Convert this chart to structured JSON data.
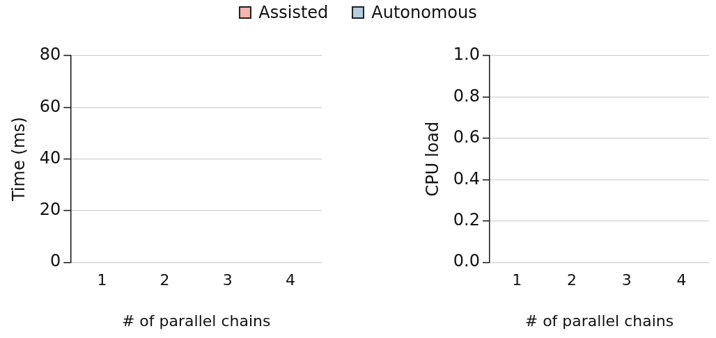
{
  "chart_data": [
    {
      "type": "bar",
      "categories": [
        "1",
        "2",
        "3",
        "4"
      ],
      "xlabel": "# of parallel chains",
      "ylabel": "Time (ms)",
      "ylim": [
        0,
        80
      ],
      "yticks": [
        0,
        20,
        40,
        60,
        80
      ],
      "grid": "y",
      "legend": "top",
      "series": [
        {
          "name": "Assisted",
          "color": "#f4b6b0",
          "values": [
            null,
            null,
            null,
            null
          ]
        },
        {
          "name": "Autonomous",
          "color": "#b3cde0",
          "values": [
            null,
            null,
            null,
            null
          ]
        }
      ]
    },
    {
      "type": "bar",
      "categories": [
        "1",
        "2",
        "3",
        "4"
      ],
      "xlabel": "# of parallel chains",
      "ylabel": "CPU load",
      "ylim": [
        0,
        1
      ],
      "yticks": [
        {
          "value": 0,
          "label": "0.0"
        },
        {
          "value": 0.2,
          "label": "0.2"
        },
        {
          "value": 0.4,
          "label": "0.4"
        },
        {
          "value": 0.6,
          "label": "0.6"
        },
        {
          "value": 0.8,
          "label": "0.8"
        },
        {
          "value": 1,
          "label": "1.0"
        }
      ],
      "grid": "y",
      "series": [
        {
          "color": "#f4b6b0",
          "values": [
            null,
            null,
            null,
            null
          ]
        },
        {
          "color": "#b3cde0",
          "values": [
            null,
            null,
            null,
            null
          ]
        }
      ]
    }
  ]
}
